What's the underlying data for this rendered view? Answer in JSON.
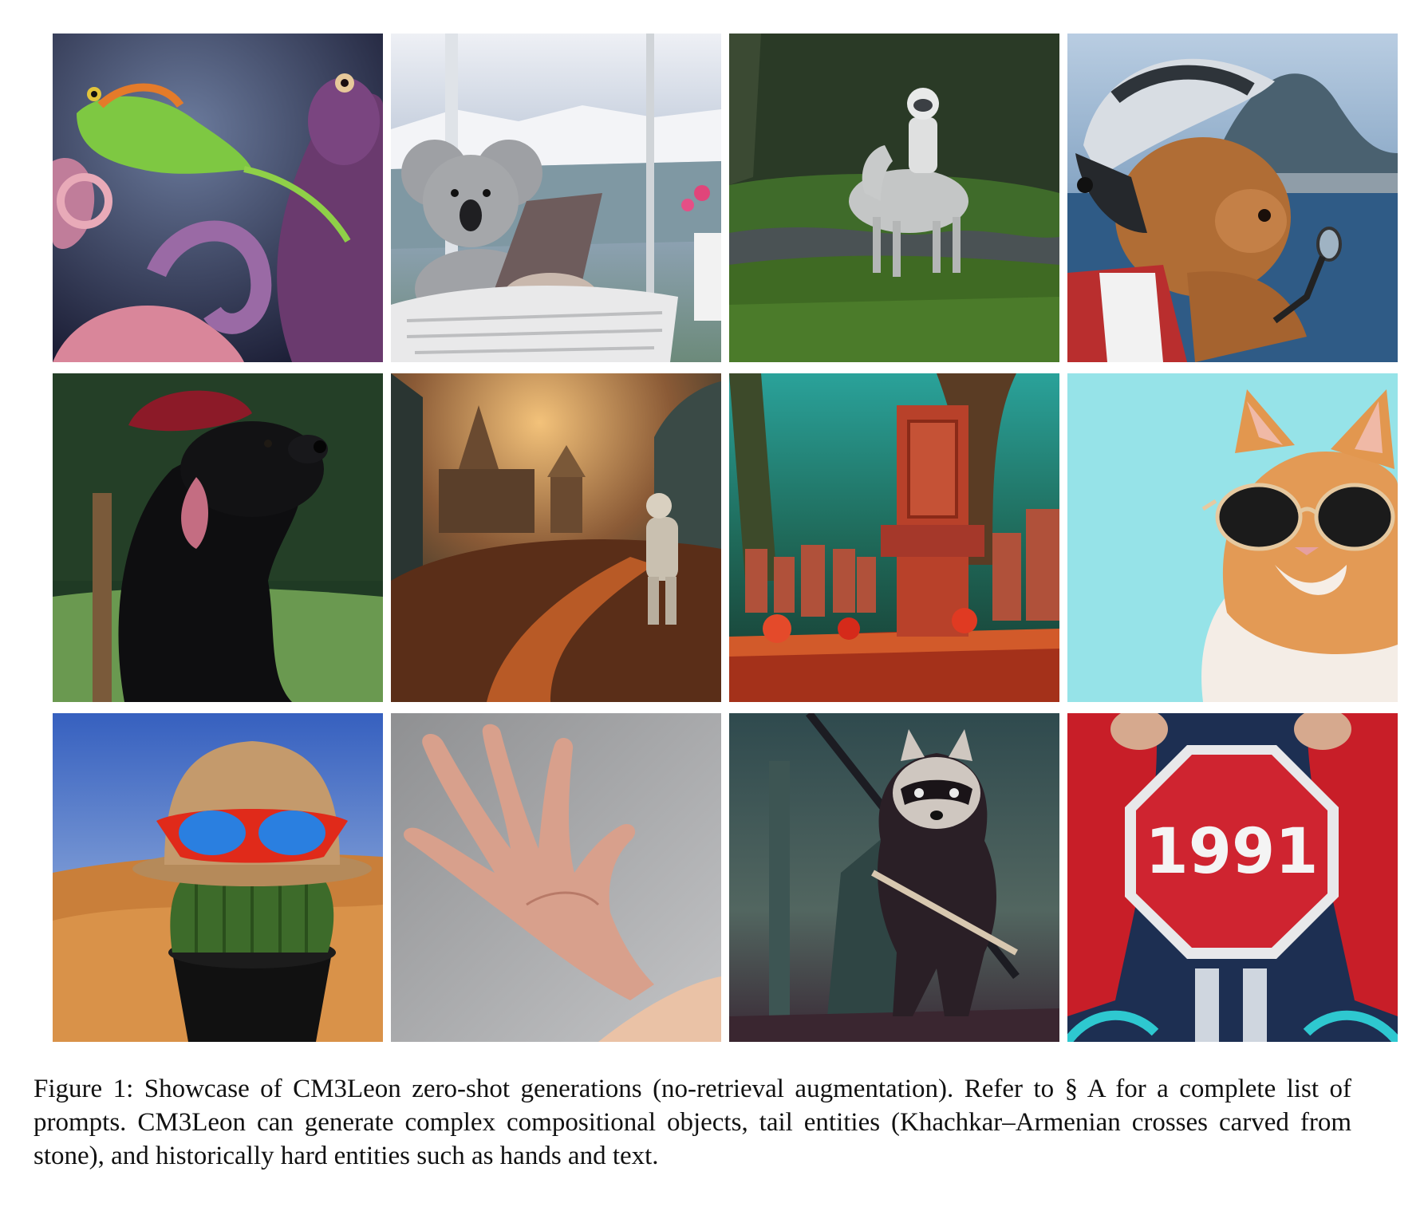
{
  "figure": {
    "caption_lines": [
      "Figure 1: Showcase of CM3Leon zero-shot generations (no-retrieval augmentation). Refer to § A for a complete",
      "list of prompts.  CM3Leon can generate complex compositional objects, tail entities (Khachkar–Armenian",
      "crosses carved from stone), and historically hard entities such as hands and text."
    ],
    "sign_text": "1991",
    "tiles": [
      {
        "name": "chameleon-octopus-image"
      },
      {
        "name": "koala-laptop-image"
      },
      {
        "name": "astronaut-horse-image"
      },
      {
        "name": "teddy-bear-motorcycle-image"
      },
      {
        "name": "black-dog-beret-image"
      },
      {
        "name": "church-astronaut-image"
      },
      {
        "name": "khachkar-forest-image"
      },
      {
        "name": "cat-sunglasses-image"
      },
      {
        "name": "cactus-hat-image"
      },
      {
        "name": "hand-image"
      },
      {
        "name": "raccoon-samurai-image"
      },
      {
        "name": "stop-sign-1991-image"
      }
    ]
  }
}
